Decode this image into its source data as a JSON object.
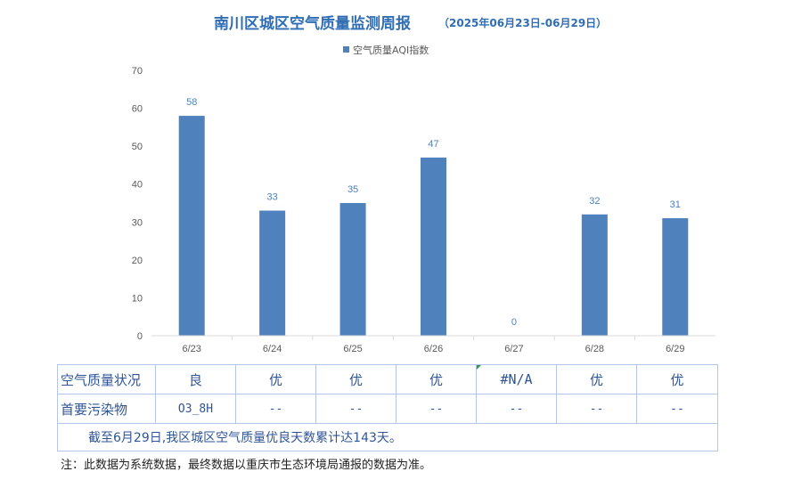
{
  "chart_data": {
    "type": "bar",
    "title": "南川区城区空气质量监测周报",
    "subtitle": "（2025年06月23日-06月29日）",
    "legend": [
      "空气质量AQI指数"
    ],
    "legend_position": "top-center",
    "categories": [
      "6/23",
      "6/24",
      "6/25",
      "6/26",
      "6/27",
      "6/28",
      "6/29"
    ],
    "series": [
      {
        "name": "空气质量AQI指数",
        "values": [
          58,
          33,
          35,
          47,
          0,
          32,
          31
        ],
        "color": "#4f81bd"
      }
    ],
    "data_labels": [
      "58",
      "33",
      "35",
      "47",
      "0",
      "32",
      "31"
    ],
    "ylim": [
      0,
      70
    ],
    "yticks": [
      0,
      10,
      20,
      30,
      40,
      50,
      60,
      70
    ],
    "grid": false
  },
  "table": {
    "row1_header": "空气质量状况",
    "row1_values": [
      "良",
      "优",
      "优",
      "优",
      "#N/A",
      "优",
      "优"
    ],
    "row2_header": "首要污染物",
    "row2_values": [
      "O3_8H",
      "--",
      "--",
      "--",
      "--",
      "--",
      "--"
    ],
    "summary": "截至6月29日,我区城区空气质量优良天数累计达143天。"
  },
  "note": "注：此数据为系统数据，最终数据以重庆市生态环境局通报的数据为准。",
  "colors": {
    "bar": "#4f81bd",
    "title": "#2f6db5",
    "table_text": "#2f5597",
    "table_border": "#b4c6e7"
  }
}
